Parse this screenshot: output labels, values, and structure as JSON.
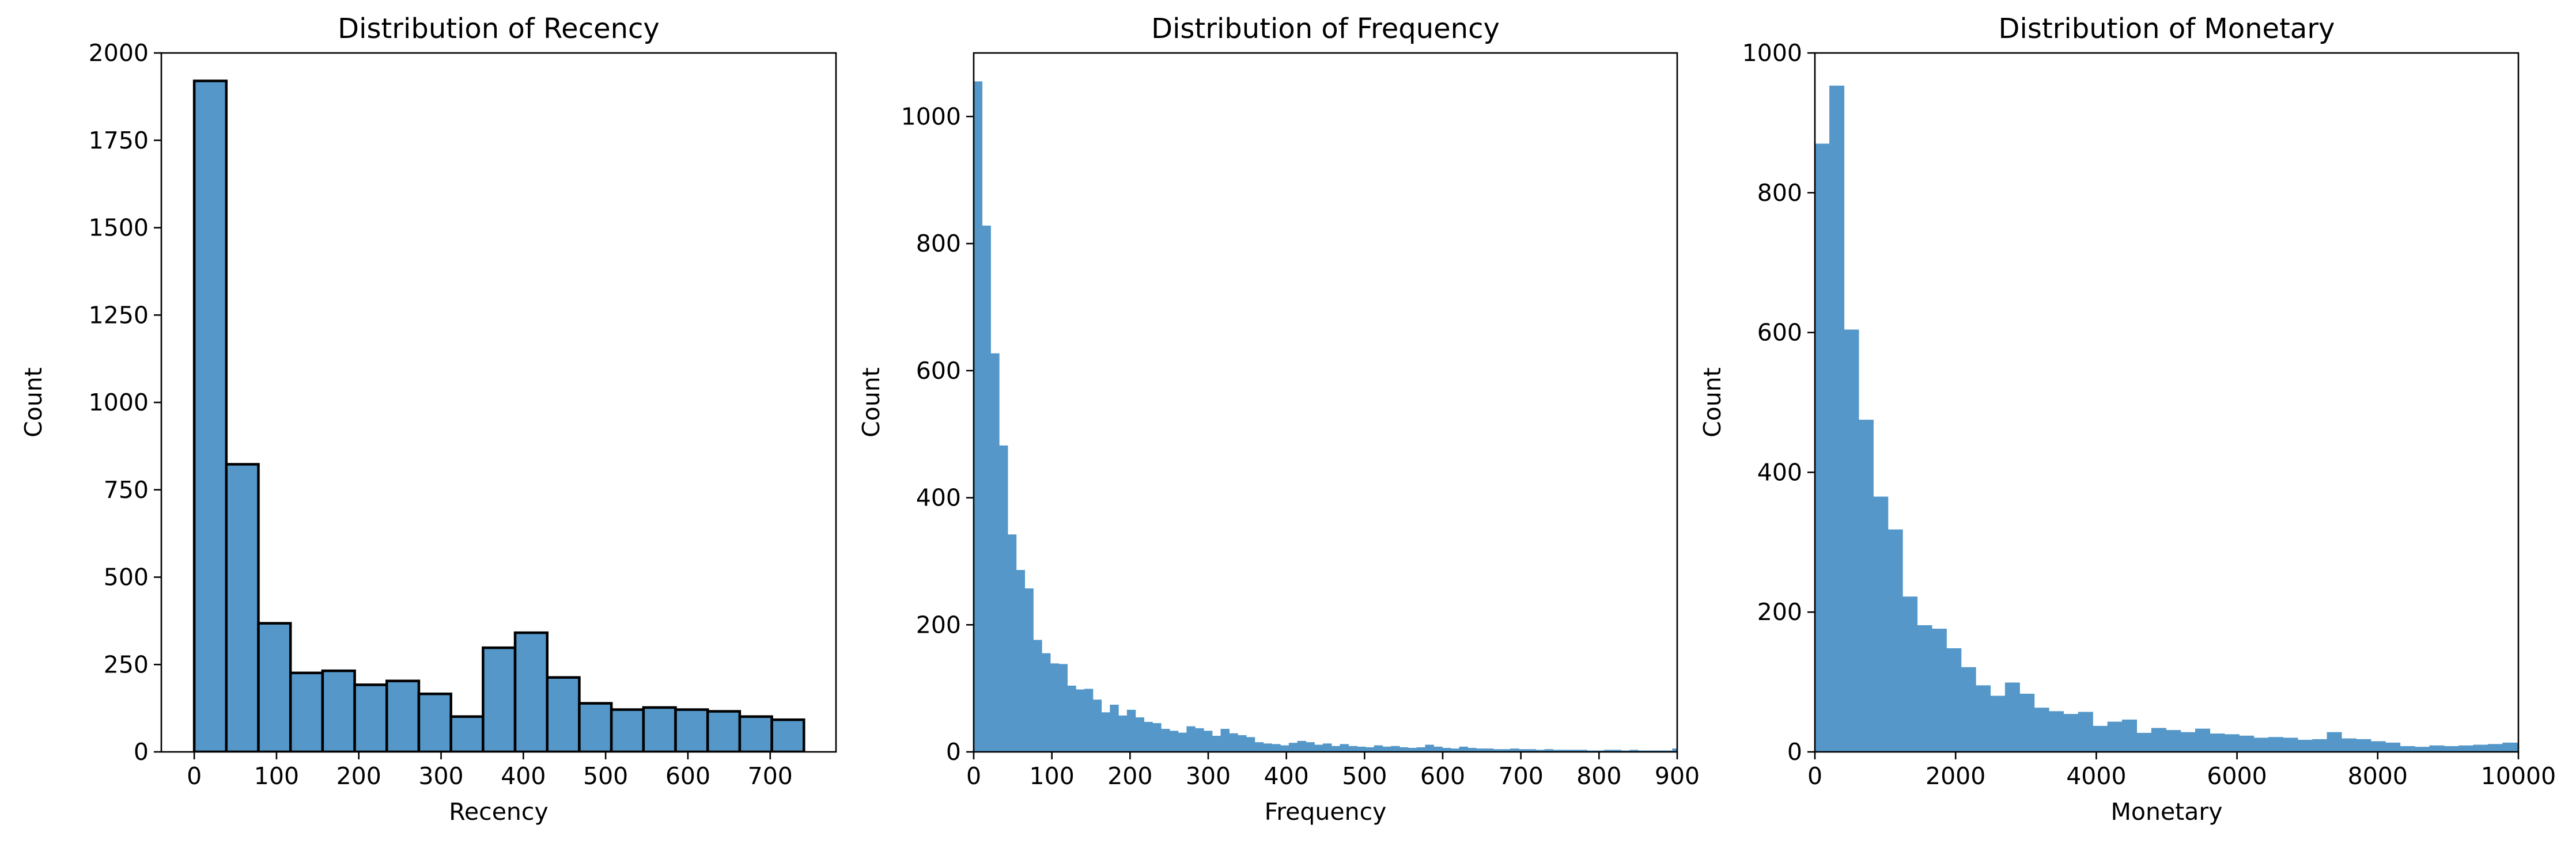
{
  "chart_data": [
    {
      "type": "bar",
      "title": "Distribution of Recency",
      "xlabel": "Recency",
      "ylabel": "Count",
      "xlim": [
        -40,
        780
      ],
      "ylim": [
        0,
        2000
      ],
      "xticks": [
        0,
        100,
        200,
        300,
        400,
        500,
        600,
        700
      ],
      "yticks": [
        0,
        250,
        500,
        750,
        1000,
        1250,
        1500,
        1750,
        2000
      ],
      "bin_edges": [
        0,
        39,
        78,
        117,
        156,
        195,
        234,
        273,
        312,
        351,
        390,
        429,
        468,
        507,
        546,
        585,
        624,
        663,
        702,
        741
      ],
      "values": [
        1920,
        823,
        368,
        226,
        232,
        192,
        203,
        166,
        101,
        298,
        341,
        213,
        139,
        121,
        127,
        121,
        116,
        101,
        92
      ],
      "bar_color": "#5497c8",
      "edge_color": "#000000",
      "grid": false
    },
    {
      "type": "bar",
      "title": "Distribution of Frequency",
      "xlabel": "Frequency",
      "ylabel": "Count",
      "xlim": [
        0,
        900
      ],
      "ylim": [
        0,
        1100
      ],
      "xticks": [
        0,
        100,
        200,
        300,
        400,
        500,
        600,
        700,
        800,
        900
      ],
      "yticks": [
        0,
        200,
        400,
        600,
        800,
        1000
      ],
      "bin_start": 0,
      "bin_width": 10.9,
      "values": [
        1055,
        828,
        627,
        482,
        342,
        286,
        257,
        176,
        155,
        139,
        138,
        104,
        98,
        99,
        82,
        62,
        74,
        57,
        66,
        54,
        47,
        45,
        36,
        33,
        30,
        40,
        37,
        33,
        25,
        36,
        29,
        26,
        23,
        15,
        13,
        12,
        10,
        14,
        17,
        15,
        11,
        13,
        9,
        12,
        9,
        8,
        7,
        10,
        8,
        9,
        7,
        6,
        7,
        11,
        8,
        6,
        5,
        8,
        6,
        5,
        5,
        4,
        4,
        5,
        4,
        4,
        3,
        4,
        3,
        3,
        3,
        3,
        2,
        2,
        3,
        3,
        2,
        3,
        2,
        2,
        2,
        2,
        5
      ],
      "bar_color": "#5497c8",
      "grid": false
    },
    {
      "type": "bar",
      "title": "Distribution of Monetary",
      "xlabel": "Monetary",
      "ylabel": "Count",
      "xlim": [
        0,
        10000
      ],
      "ylim": [
        0,
        1000
      ],
      "xticks": [
        0,
        2000,
        4000,
        6000,
        8000,
        10000
      ],
      "yticks": [
        0,
        200,
        400,
        600,
        800,
        1000
      ],
      "bin_start": 0,
      "bin_width": 208,
      "values": [
        870,
        953,
        604,
        475,
        365,
        318,
        222,
        181,
        176,
        148,
        121,
        95,
        80,
        99,
        83,
        63,
        58,
        54,
        57,
        37,
        43,
        46,
        27,
        34,
        31,
        28,
        33,
        26,
        25,
        23,
        20,
        21,
        20,
        17,
        18,
        28,
        19,
        18,
        15,
        13,
        8,
        7,
        9,
        8,
        9,
        10,
        11,
        13,
        12,
        11,
        10,
        9,
        11,
        8,
        7,
        9,
        8,
        10,
        9,
        13
      ],
      "bar_color": "#5497c8",
      "grid": false
    }
  ]
}
